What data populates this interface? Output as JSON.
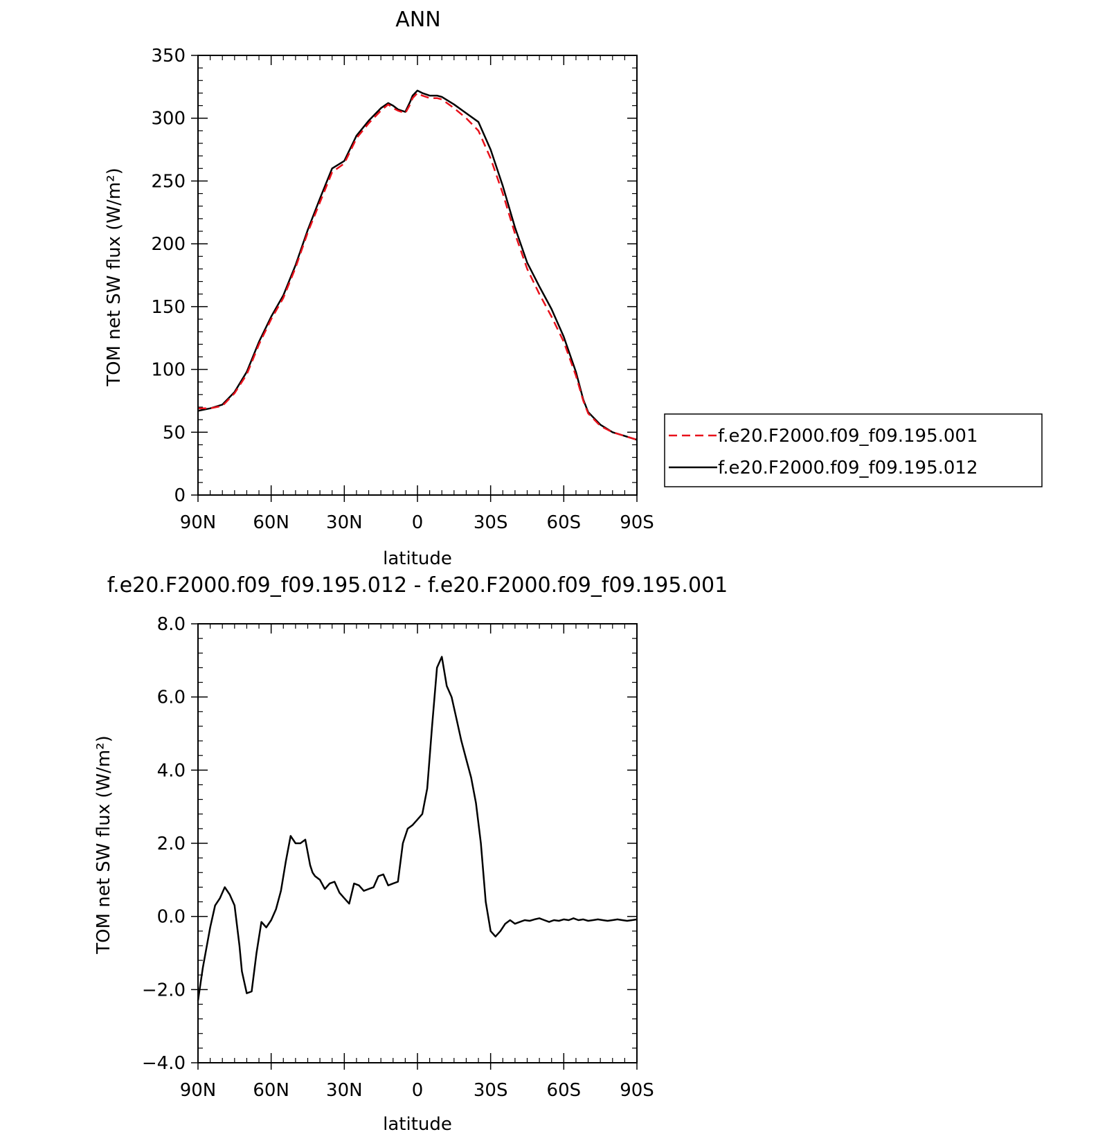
{
  "chart_data": [
    {
      "type": "line",
      "title": "ANN",
      "xlabel": "latitude",
      "ylabel": "TOM net SW flux (W/m²)",
      "xlim": [
        90,
        -90
      ],
      "ylim": [
        0,
        350
      ],
      "xticks": [
        {
          "value": 90,
          "label": "90N"
        },
        {
          "value": 60,
          "label": "60N"
        },
        {
          "value": 30,
          "label": "30N"
        },
        {
          "value": 0,
          "label": "0"
        },
        {
          "value": -30,
          "label": "30S"
        },
        {
          "value": -60,
          "label": "60S"
        },
        {
          "value": -90,
          "label": "90S"
        }
      ],
      "yticks": [
        {
          "value": 0,
          "label": "0"
        },
        {
          "value": 50,
          "label": "50"
        },
        {
          "value": 100,
          "label": "100"
        },
        {
          "value": 150,
          "label": "150"
        },
        {
          "value": 200,
          "label": "200"
        },
        {
          "value": 250,
          "label": "250"
        },
        {
          "value": 300,
          "label": "300"
        },
        {
          "value": 350,
          "label": "350"
        }
      ],
      "legend_position": "outside-right",
      "series": [
        {
          "name": "f.e20.F2000.f09_f09.195.001",
          "color": "#e8111b",
          "dash": "dashed",
          "x": [
            90,
            85,
            80,
            75,
            70,
            65,
            60,
            55,
            50,
            45,
            40,
            35,
            30,
            27,
            25,
            20,
            15,
            12,
            10,
            8,
            5,
            3,
            2,
            0,
            -2,
            -5,
            -8,
            -10,
            -15,
            -20,
            -25,
            -30,
            -35,
            -40,
            -45,
            -50,
            -55,
            -60,
            -65,
            -68,
            -70,
            -75,
            -80,
            -85,
            -90
          ],
          "y": [
            69,
            69,
            71,
            81,
            96,
            120,
            140,
            157,
            181,
            209,
            233,
            257,
            264,
            276,
            284,
            296,
            306,
            311,
            308,
            306,
            304,
            311,
            316,
            320,
            318,
            316,
            316,
            315,
            308,
            300,
            290,
            268,
            240,
            208,
            180,
            160,
            142,
            122,
            95,
            75,
            65,
            55,
            50,
            47,
            44
          ]
        },
        {
          "name": "f.e20.F2000.f09_f09.195.012",
          "color": "#000000",
          "dash": "solid",
          "x": [
            90,
            85,
            80,
            75,
            70,
            65,
            60,
            55,
            50,
            45,
            40,
            35,
            30,
            27,
            25,
            20,
            15,
            12,
            10,
            8,
            5,
            3,
            2,
            0,
            -2,
            -5,
            -8,
            -10,
            -15,
            -20,
            -25,
            -30,
            -35,
            -40,
            -45,
            -50,
            -55,
            -60,
            -65,
            -68,
            -70,
            -75,
            -80,
            -85,
            -90
          ],
          "y": [
            67,
            69,
            72,
            82,
            98,
            122,
            142,
            159,
            183,
            211,
            236,
            260,
            266,
            278,
            286,
            298,
            308,
            312,
            310,
            307,
            305,
            313,
            318,
            322,
            320,
            318,
            318,
            317,
            311,
            304,
            297,
            275,
            246,
            213,
            185,
            166,
            148,
            126,
            98,
            76,
            66,
            56,
            50,
            47,
            44
          ]
        }
      ]
    },
    {
      "type": "line",
      "title": "f.e20.F2000.f09_f09.195.012 - f.e20.F2000.f09_f09.195.001",
      "xlabel": "latitude",
      "ylabel": "TOM net SW flux (W/m²)",
      "xlim": [
        90,
        -90
      ],
      "ylim": [
        -4.0,
        8.0
      ],
      "xticks": [
        {
          "value": 90,
          "label": "90N"
        },
        {
          "value": 60,
          "label": "60N"
        },
        {
          "value": 30,
          "label": "30N"
        },
        {
          "value": 0,
          "label": "0"
        },
        {
          "value": -30,
          "label": "30S"
        },
        {
          "value": -60,
          "label": "60S"
        },
        {
          "value": -90,
          "label": "90S"
        }
      ],
      "yticks": [
        {
          "value": -4.0,
          "label": "−4.0"
        },
        {
          "value": -2.0,
          "label": "−2.0"
        },
        {
          "value": 0.0,
          "label": "0.0"
        },
        {
          "value": 2.0,
          "label": "2.0"
        },
        {
          "value": 4.0,
          "label": "4.0"
        },
        {
          "value": 6.0,
          "label": "6.0"
        },
        {
          "value": 8.0,
          "label": "8.0"
        }
      ],
      "series": [
        {
          "color": "#000000",
          "dash": "solid",
          "x": [
            90,
            88,
            85,
            83,
            81,
            79,
            77,
            75,
            73,
            72,
            70,
            68,
            66,
            64,
            62,
            60,
            58,
            56,
            54,
            52,
            50,
            48,
            46,
            44,
            43,
            42,
            40,
            38,
            36,
            34,
            32,
            30,
            28,
            26,
            24,
            22,
            20,
            18,
            16,
            14,
            12,
            10,
            8,
            6,
            4,
            2,
            0,
            -2,
            -4,
            -6,
            -8,
            -10,
            -12,
            -14,
            -16,
            -18,
            -20,
            -22,
            -24,
            -26,
            -28,
            -30,
            -32,
            -34,
            -36,
            -38,
            -40,
            -42,
            -44,
            -46,
            -48,
            -50,
            -52,
            -54,
            -56,
            -58,
            -60,
            -62,
            -64,
            -66,
            -68,
            -70,
            -72,
            -74,
            -76,
            -78,
            -80,
            -82,
            -84,
            -86,
            -88,
            -90
          ],
          "y": [
            -2.3,
            -1.4,
            -0.3,
            0.3,
            0.5,
            0.8,
            0.6,
            0.3,
            -0.8,
            -1.5,
            -2.1,
            -2.05,
            -1.0,
            -0.15,
            -0.3,
            -0.1,
            0.2,
            0.7,
            1.5,
            2.2,
            2.0,
            2.0,
            2.1,
            1.4,
            1.2,
            1.1,
            1.0,
            0.75,
            0.9,
            0.95,
            0.65,
            0.5,
            0.35,
            0.9,
            0.85,
            0.7,
            0.75,
            0.8,
            1.1,
            1.15,
            0.85,
            0.9,
            0.95,
            2.0,
            2.4,
            2.5,
            2.65,
            2.8,
            3.5,
            5.2,
            6.8,
            7.1,
            6.3,
            6.0,
            5.4,
            4.8,
            4.3,
            3.8,
            3.1,
            2.0,
            0.4,
            -0.4,
            -0.55,
            -0.4,
            -0.2,
            -0.1,
            -0.2,
            -0.15,
            -0.1,
            -0.12,
            -0.08,
            -0.05,
            -0.1,
            -0.15,
            -0.1,
            -0.12,
            -0.08,
            -0.1,
            -0.05,
            -0.1,
            -0.08,
            -0.12,
            -0.1,
            -0.08,
            -0.1,
            -0.12,
            -0.1,
            -0.08,
            -0.1,
            -0.12,
            -0.1,
            -0.08
          ]
        }
      ]
    }
  ]
}
